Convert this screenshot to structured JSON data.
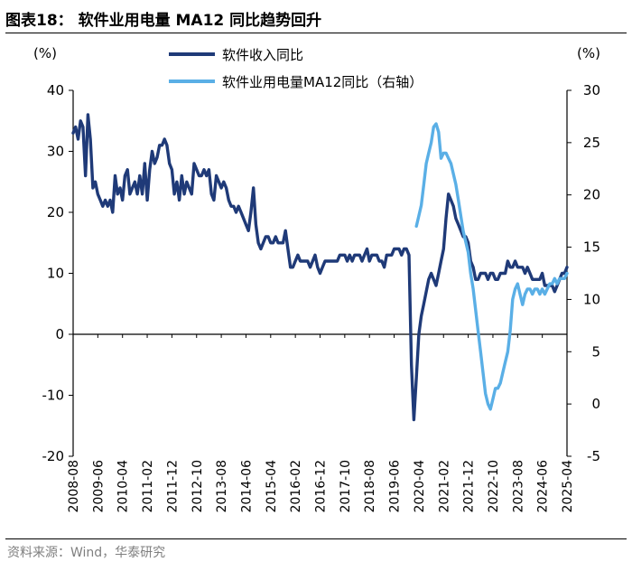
{
  "figure_title": "图表18：  软件业用电量 MA12 同比趋势回升",
  "source_note": "资料来源：Wind，华泰研究",
  "colors": {
    "dark_navy": "#1f3a78",
    "light_blue": "#5aafe6",
    "axis": "#000000",
    "source_text": "#7f7f7f"
  },
  "chart_data": {
    "type": "line",
    "left_axis": {
      "unit_label": "(%)",
      "ylim": [
        -20,
        40
      ],
      "ticks": [
        "40",
        "30",
        "20",
        "10",
        "0",
        "-10",
        "-20"
      ]
    },
    "right_axis": {
      "unit_label": "(%)",
      "ylim": [
        -5,
        30
      ],
      "ticks": [
        "30",
        "25",
        "20",
        "15",
        "10",
        "5",
        "0",
        "-5"
      ]
    },
    "x_ticks": [
      "2008-08",
      "2009-06",
      "2010-04",
      "2011-02",
      "2011-12",
      "2012-10",
      "2013-08",
      "2014-06",
      "2015-04",
      "2016-02",
      "2016-12",
      "2017-10",
      "2018-08",
      "2019-06",
      "2020-04",
      "2021-02",
      "2021-12",
      "2022-10",
      "2023-08",
      "2024-06",
      "2025-04"
    ],
    "grid": false,
    "legend_position": "top-center",
    "series": [
      {
        "name": "软件收入同比",
        "axis": "left",
        "color": "#1f3a78",
        "points": [
          [
            "2008-08",
            33
          ],
          [
            "2008-09",
            34
          ],
          [
            "2008-10",
            32
          ],
          [
            "2008-11",
            35
          ],
          [
            "2008-12",
            34
          ],
          [
            "2009-01",
            26
          ],
          [
            "2009-02",
            36
          ],
          [
            "2009-03",
            32
          ],
          [
            "2009-04",
            24
          ],
          [
            "2009-05",
            25
          ],
          [
            "2009-06",
            23
          ],
          [
            "2009-07",
            22
          ],
          [
            "2009-08",
            21
          ],
          [
            "2009-09",
            22
          ],
          [
            "2009-10",
            21
          ],
          [
            "2009-11",
            22
          ],
          [
            "2009-12",
            20
          ],
          [
            "2010-01",
            26
          ],
          [
            "2010-02",
            23
          ],
          [
            "2010-03",
            24
          ],
          [
            "2010-04",
            22
          ],
          [
            "2010-05",
            26
          ],
          [
            "2010-06",
            27
          ],
          [
            "2010-07",
            23
          ],
          [
            "2010-08",
            24
          ],
          [
            "2010-09",
            25
          ],
          [
            "2010-10",
            23
          ],
          [
            "2010-11",
            26
          ],
          [
            "2010-12",
            23
          ],
          [
            "2011-01",
            28
          ],
          [
            "2011-02",
            22
          ],
          [
            "2011-03",
            27
          ],
          [
            "2011-04",
            30
          ],
          [
            "2011-05",
            28
          ],
          [
            "2011-06",
            29
          ],
          [
            "2011-07",
            31
          ],
          [
            "2011-08",
            31
          ],
          [
            "2011-09",
            32
          ],
          [
            "2011-10",
            31
          ],
          [
            "2011-11",
            28
          ],
          [
            "2011-12",
            27
          ],
          [
            "2012-01",
            23
          ],
          [
            "2012-02",
            25
          ],
          [
            "2012-03",
            22
          ],
          [
            "2012-04",
            26
          ],
          [
            "2012-05",
            23
          ],
          [
            "2012-06",
            25
          ],
          [
            "2012-07",
            24
          ],
          [
            "2012-08",
            23
          ],
          [
            "2012-09",
            28
          ],
          [
            "2012-10",
            27
          ],
          [
            "2012-11",
            26
          ],
          [
            "2012-12",
            26
          ],
          [
            "2013-01",
            27
          ],
          [
            "2013-02",
            26
          ],
          [
            "2013-03",
            27
          ],
          [
            "2013-04",
            23
          ],
          [
            "2013-05",
            22
          ],
          [
            "2013-06",
            26
          ],
          [
            "2013-07",
            25
          ],
          [
            "2013-08",
            24
          ],
          [
            "2013-09",
            25
          ],
          [
            "2013-10",
            24
          ],
          [
            "2013-11",
            22
          ],
          [
            "2013-12",
            21
          ],
          [
            "2014-01",
            21
          ],
          [
            "2014-02",
            20
          ],
          [
            "2014-03",
            21
          ],
          [
            "2014-04",
            20
          ],
          [
            "2014-05",
            19
          ],
          [
            "2014-06",
            18
          ],
          [
            "2014-07",
            17
          ],
          [
            "2014-08",
            20
          ],
          [
            "2014-09",
            24
          ],
          [
            "2014-10",
            18
          ],
          [
            "2014-11",
            15
          ],
          [
            "2014-12",
            14
          ],
          [
            "2015-01",
            15
          ],
          [
            "2015-02",
            16
          ],
          [
            "2015-03",
            16
          ],
          [
            "2015-04",
            15
          ],
          [
            "2015-05",
            15
          ],
          [
            "2015-06",
            16
          ],
          [
            "2015-07",
            15
          ],
          [
            "2015-08",
            15
          ],
          [
            "2015-09",
            15
          ],
          [
            "2015-10",
            17
          ],
          [
            "2015-11",
            14
          ],
          [
            "2015-12",
            11
          ],
          [
            "2016-01",
            11
          ],
          [
            "2016-02",
            12
          ],
          [
            "2016-03",
            13
          ],
          [
            "2016-04",
            12
          ],
          [
            "2016-05",
            12
          ],
          [
            "2016-06",
            12
          ],
          [
            "2016-07",
            12
          ],
          [
            "2016-08",
            11
          ],
          [
            "2016-09",
            12
          ],
          [
            "2016-10",
            13
          ],
          [
            "2016-11",
            11
          ],
          [
            "2016-12",
            10
          ],
          [
            "2017-01",
            11
          ],
          [
            "2017-02",
            12
          ],
          [
            "2017-03",
            12
          ],
          [
            "2017-04",
            12
          ],
          [
            "2017-05",
            12
          ],
          [
            "2017-06",
            12
          ],
          [
            "2017-07",
            12
          ],
          [
            "2017-08",
            13
          ],
          [
            "2017-09",
            13
          ],
          [
            "2017-10",
            13
          ],
          [
            "2017-11",
            12
          ],
          [
            "2017-12",
            13
          ],
          [
            "2018-01",
            12
          ],
          [
            "2018-02",
            13
          ],
          [
            "2018-03",
            13
          ],
          [
            "2018-04",
            13
          ],
          [
            "2018-05",
            12
          ],
          [
            "2018-06",
            13
          ],
          [
            "2018-07",
            14
          ],
          [
            "2018-08",
            12
          ],
          [
            "2018-09",
            13
          ],
          [
            "2018-10",
            13
          ],
          [
            "2018-11",
            13
          ],
          [
            "2018-12",
            12
          ],
          [
            "2019-01",
            12
          ],
          [
            "2019-02",
            11
          ],
          [
            "2019-03",
            13
          ],
          [
            "2019-04",
            13
          ],
          [
            "2019-05",
            13
          ],
          [
            "2019-06",
            14
          ],
          [
            "2019-07",
            14
          ],
          [
            "2019-08",
            14
          ],
          [
            "2019-09",
            13
          ],
          [
            "2019-10",
            14
          ],
          [
            "2019-11",
            14
          ],
          [
            "2019-12",
            13
          ],
          [
            "2020-01",
            -5
          ],
          [
            "2020-02",
            -14
          ],
          [
            "2020-03",
            -7
          ],
          [
            "2020-04",
            0
          ],
          [
            "2020-05",
            3
          ],
          [
            "2020-06",
            5
          ],
          [
            "2020-07",
            7
          ],
          [
            "2020-08",
            9
          ],
          [
            "2020-09",
            10
          ],
          [
            "2020-10",
            9
          ],
          [
            "2020-11",
            8
          ],
          [
            "2020-12",
            10
          ],
          [
            "2021-01",
            12
          ],
          [
            "2021-02",
            14
          ],
          [
            "2021-03",
            19
          ],
          [
            "2021-04",
            23
          ],
          [
            "2021-05",
            22
          ],
          [
            "2021-06",
            21
          ],
          [
            "2021-07",
            19
          ],
          [
            "2021-08",
            18
          ],
          [
            "2021-09",
            17
          ],
          [
            "2021-10",
            16
          ],
          [
            "2021-11",
            16
          ],
          [
            "2021-12",
            15
          ],
          [
            "2022-01",
            12
          ],
          [
            "2022-02",
            11
          ],
          [
            "2022-03",
            9
          ],
          [
            "2022-04",
            9
          ],
          [
            "2022-05",
            10
          ],
          [
            "2022-06",
            10
          ],
          [
            "2022-07",
            10
          ],
          [
            "2022-08",
            9
          ],
          [
            "2022-09",
            10
          ],
          [
            "2022-10",
            10
          ],
          [
            "2022-11",
            9
          ],
          [
            "2022-12",
            9
          ],
          [
            "2023-01",
            10
          ],
          [
            "2023-02",
            10
          ],
          [
            "2023-03",
            10
          ],
          [
            "2023-04",
            12
          ],
          [
            "2023-05",
            11
          ],
          [
            "2023-06",
            11
          ],
          [
            "2023-07",
            12
          ],
          [
            "2023-08",
            11
          ],
          [
            "2023-09",
            11
          ],
          [
            "2023-10",
            11
          ],
          [
            "2023-11",
            10
          ],
          [
            "2023-12",
            11
          ],
          [
            "2024-01",
            10
          ],
          [
            "2024-02",
            9
          ],
          [
            "2024-03",
            9
          ],
          [
            "2024-04",
            9
          ],
          [
            "2024-05",
            9
          ],
          [
            "2024-06",
            10
          ],
          [
            "2024-07",
            8
          ],
          [
            "2024-08",
            8
          ],
          [
            "2024-09",
            8
          ],
          [
            "2024-10",
            8
          ],
          [
            "2024-11",
            7
          ],
          [
            "2024-12",
            8
          ],
          [
            "2025-01",
            9
          ],
          [
            "2025-02",
            10
          ],
          [
            "2025-03",
            10
          ],
          [
            "2025-04",
            11
          ]
        ]
      },
      {
        "name": "软件业用电量MA12同比（右轴）",
        "axis": "right",
        "color": "#5aafe6",
        "points": [
          [
            "2020-03",
            17
          ],
          [
            "2020-04",
            18
          ],
          [
            "2020-05",
            19
          ],
          [
            "2020-06",
            21
          ],
          [
            "2020-07",
            23
          ],
          [
            "2020-08",
            24
          ],
          [
            "2020-09",
            25
          ],
          [
            "2020-10",
            26.5
          ],
          [
            "2020-11",
            26.8
          ],
          [
            "2020-12",
            26
          ],
          [
            "2021-01",
            23.5
          ],
          [
            "2021-02",
            24
          ],
          [
            "2021-03",
            24
          ],
          [
            "2021-04",
            23.5
          ],
          [
            "2021-05",
            23
          ],
          [
            "2021-06",
            22
          ],
          [
            "2021-07",
            21
          ],
          [
            "2021-08",
            19.5
          ],
          [
            "2021-09",
            18
          ],
          [
            "2021-10",
            16.5
          ],
          [
            "2021-11",
            15.5
          ],
          [
            "2021-12",
            14.5
          ],
          [
            "2022-01",
            12.5
          ],
          [
            "2022-02",
            11
          ],
          [
            "2022-03",
            9
          ],
          [
            "2022-04",
            7
          ],
          [
            "2022-05",
            5
          ],
          [
            "2022-06",
            3
          ],
          [
            "2022-07",
            1
          ],
          [
            "2022-08",
            0
          ],
          [
            "2022-09",
            -0.5
          ],
          [
            "2022-10",
            0.5
          ],
          [
            "2022-11",
            1.5
          ],
          [
            "2022-12",
            1.5
          ],
          [
            "2023-01",
            2
          ],
          [
            "2023-02",
            3
          ],
          [
            "2023-03",
            4
          ],
          [
            "2023-04",
            5
          ],
          [
            "2023-05",
            7
          ],
          [
            "2023-06",
            10
          ],
          [
            "2023-07",
            11
          ],
          [
            "2023-08",
            11.5
          ],
          [
            "2023-09",
            10.5
          ],
          [
            "2023-10",
            9.5
          ],
          [
            "2023-11",
            10.5
          ],
          [
            "2023-12",
            11
          ],
          [
            "2024-01",
            11
          ],
          [
            "2024-02",
            10.5
          ],
          [
            "2024-03",
            11
          ],
          [
            "2024-04",
            11
          ],
          [
            "2024-05",
            10.5
          ],
          [
            "2024-06",
            11
          ],
          [
            "2024-07",
            10.5
          ],
          [
            "2024-08",
            11
          ],
          [
            "2024-09",
            11.5
          ],
          [
            "2024-10",
            11.5
          ],
          [
            "2024-11",
            12
          ],
          [
            "2024-12",
            11.5
          ],
          [
            "2025-01",
            12
          ],
          [
            "2025-02",
            12
          ],
          [
            "2025-03",
            12
          ],
          [
            "2025-04",
            12.5
          ]
        ]
      }
    ]
  }
}
